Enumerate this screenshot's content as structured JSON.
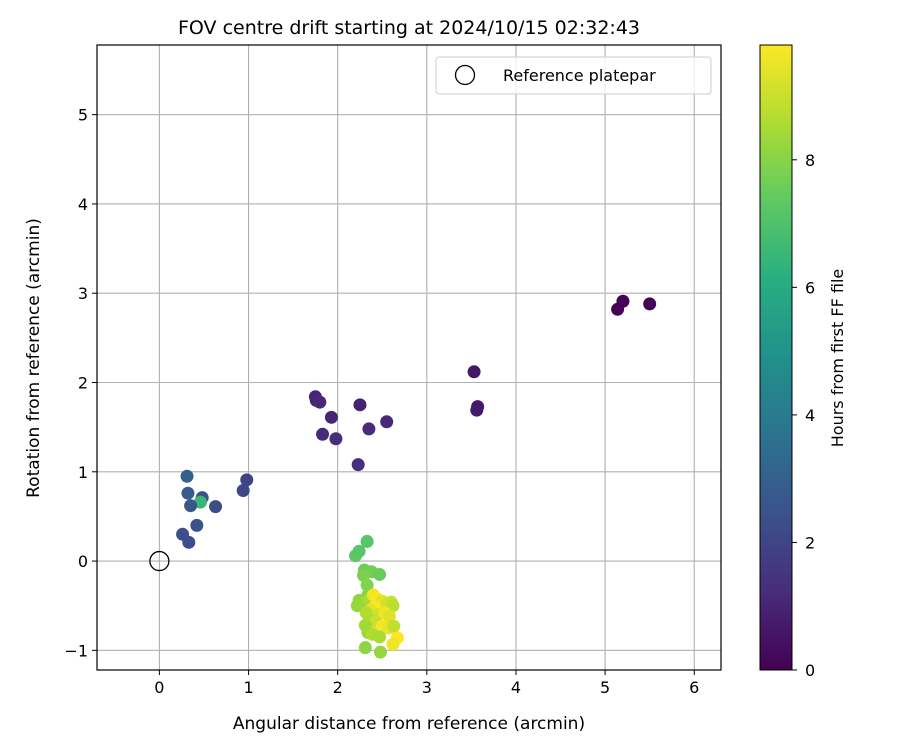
{
  "chart_data": {
    "type": "scatter",
    "title": "FOV centre drift starting at 2024/10/15 02:32:43",
    "xlabel": "Angular distance from reference (arcmin)",
    "ylabel": "Rotation from reference (arcmin)",
    "xlim": [
      -0.7,
      6.3
    ],
    "ylim": [
      -1.22,
      5.78
    ],
    "xticks": [
      0,
      1,
      2,
      3,
      4,
      5,
      6
    ],
    "yticks": [
      -1,
      0,
      1,
      2,
      3,
      4,
      5
    ],
    "grid": true,
    "legend": {
      "position": "top-right",
      "entries": [
        "Reference platepar"
      ]
    },
    "reference_point": {
      "x": 0,
      "y": 0
    },
    "colorbar": {
      "label": "Hours from first FF file",
      "range": [
        0,
        9.8
      ],
      "ticks": [
        0,
        2,
        4,
        6,
        8
      ],
      "colormap": "viridis"
    },
    "points": [
      {
        "x": 5.2,
        "y": 2.91,
        "h": 0.05
      },
      {
        "x": 5.14,
        "y": 2.82,
        "h": 0.05
      },
      {
        "x": 5.5,
        "y": 2.88,
        "h": 0.1
      },
      {
        "x": 3.53,
        "y": 2.12,
        "h": 0.6
      },
      {
        "x": 3.57,
        "y": 1.73,
        "h": 0.65
      },
      {
        "x": 3.56,
        "y": 1.69,
        "h": 0.7
      },
      {
        "x": 1.75,
        "y": 1.84,
        "h": 1.0
      },
      {
        "x": 1.76,
        "y": 1.8,
        "h": 1.05
      },
      {
        "x": 1.8,
        "y": 1.78,
        "h": 1.1
      },
      {
        "x": 1.93,
        "y": 1.61,
        "h": 1.0
      },
      {
        "x": 2.25,
        "y": 1.75,
        "h": 0.95
      },
      {
        "x": 2.55,
        "y": 1.56,
        "h": 1.1
      },
      {
        "x": 2.35,
        "y": 1.48,
        "h": 1.2
      },
      {
        "x": 1.83,
        "y": 1.42,
        "h": 1.15
      },
      {
        "x": 1.98,
        "y": 1.37,
        "h": 1.25
      },
      {
        "x": 2.23,
        "y": 1.08,
        "h": 1.3
      },
      {
        "x": 0.98,
        "y": 0.91,
        "h": 2.0
      },
      {
        "x": 0.94,
        "y": 0.79,
        "h": 2.1
      },
      {
        "x": 0.31,
        "y": 0.95,
        "h": 3.0
      },
      {
        "x": 0.32,
        "y": 0.76,
        "h": 2.8
      },
      {
        "x": 0.48,
        "y": 0.71,
        "h": 2.4
      },
      {
        "x": 0.46,
        "y": 0.66,
        "h": 6.5
      },
      {
        "x": 0.35,
        "y": 0.62,
        "h": 2.6
      },
      {
        "x": 0.63,
        "y": 0.61,
        "h": 2.3
      },
      {
        "x": 0.42,
        "y": 0.4,
        "h": 2.5
      },
      {
        "x": 0.26,
        "y": 0.3,
        "h": 2.4
      },
      {
        "x": 0.33,
        "y": 0.21,
        "h": 2.3
      },
      {
        "x": 2.33,
        "y": 0.22,
        "h": 7.2
      },
      {
        "x": 2.2,
        "y": 0.06,
        "h": 7.3
      },
      {
        "x": 2.24,
        "y": 0.11,
        "h": 7.2
      },
      {
        "x": 2.3,
        "y": -0.1,
        "h": 7.6
      },
      {
        "x": 2.38,
        "y": -0.12,
        "h": 7.7
      },
      {
        "x": 2.47,
        "y": -0.15,
        "h": 7.5
      },
      {
        "x": 2.29,
        "y": -0.16,
        "h": 7.8
      },
      {
        "x": 2.33,
        "y": -0.27,
        "h": 7.9
      },
      {
        "x": 2.34,
        "y": -0.38,
        "h": 8.0
      },
      {
        "x": 2.24,
        "y": -0.44,
        "h": 8.1
      },
      {
        "x": 2.22,
        "y": -0.5,
        "h": 8.2
      },
      {
        "x": 2.3,
        "y": -0.47,
        "h": 8.3
      },
      {
        "x": 2.36,
        "y": -0.43,
        "h": 8.5
      },
      {
        "x": 2.4,
        "y": -0.38,
        "h": 9.6
      },
      {
        "x": 2.44,
        "y": -0.42,
        "h": 9.7
      },
      {
        "x": 2.5,
        "y": -0.45,
        "h": 9.3
      },
      {
        "x": 2.47,
        "y": -0.5,
        "h": 9.5
      },
      {
        "x": 2.55,
        "y": -0.48,
        "h": 9.2
      },
      {
        "x": 2.6,
        "y": -0.46,
        "h": 9.0
      },
      {
        "x": 2.62,
        "y": -0.5,
        "h": 8.8
      },
      {
        "x": 2.41,
        "y": -0.52,
        "h": 9.8
      },
      {
        "x": 2.37,
        "y": -0.55,
        "h": 9.4
      },
      {
        "x": 2.32,
        "y": -0.58,
        "h": 8.7
      },
      {
        "x": 2.45,
        "y": -0.6,
        "h": 9.1
      },
      {
        "x": 2.53,
        "y": -0.58,
        "h": 9.6
      },
      {
        "x": 2.58,
        "y": -0.62,
        "h": 9.3
      },
      {
        "x": 2.36,
        "y": -0.66,
        "h": 8.6
      },
      {
        "x": 2.43,
        "y": -0.68,
        "h": 9.0
      },
      {
        "x": 2.31,
        "y": -0.72,
        "h": 8.4
      },
      {
        "x": 2.5,
        "y": -0.73,
        "h": 9.7
      },
      {
        "x": 2.57,
        "y": -0.75,
        "h": 9.5
      },
      {
        "x": 2.63,
        "y": -0.73,
        "h": 8.9
      },
      {
        "x": 2.34,
        "y": -0.8,
        "h": 8.3
      },
      {
        "x": 2.39,
        "y": -0.82,
        "h": 8.6
      },
      {
        "x": 2.47,
        "y": -0.85,
        "h": 8.5
      },
      {
        "x": 2.67,
        "y": -0.86,
        "h": 9.8
      },
      {
        "x": 2.62,
        "y": -0.93,
        "h": 9.6
      },
      {
        "x": 2.31,
        "y": -0.97,
        "h": 8.1
      },
      {
        "x": 2.48,
        "y": -1.02,
        "h": 8.2
      }
    ]
  }
}
